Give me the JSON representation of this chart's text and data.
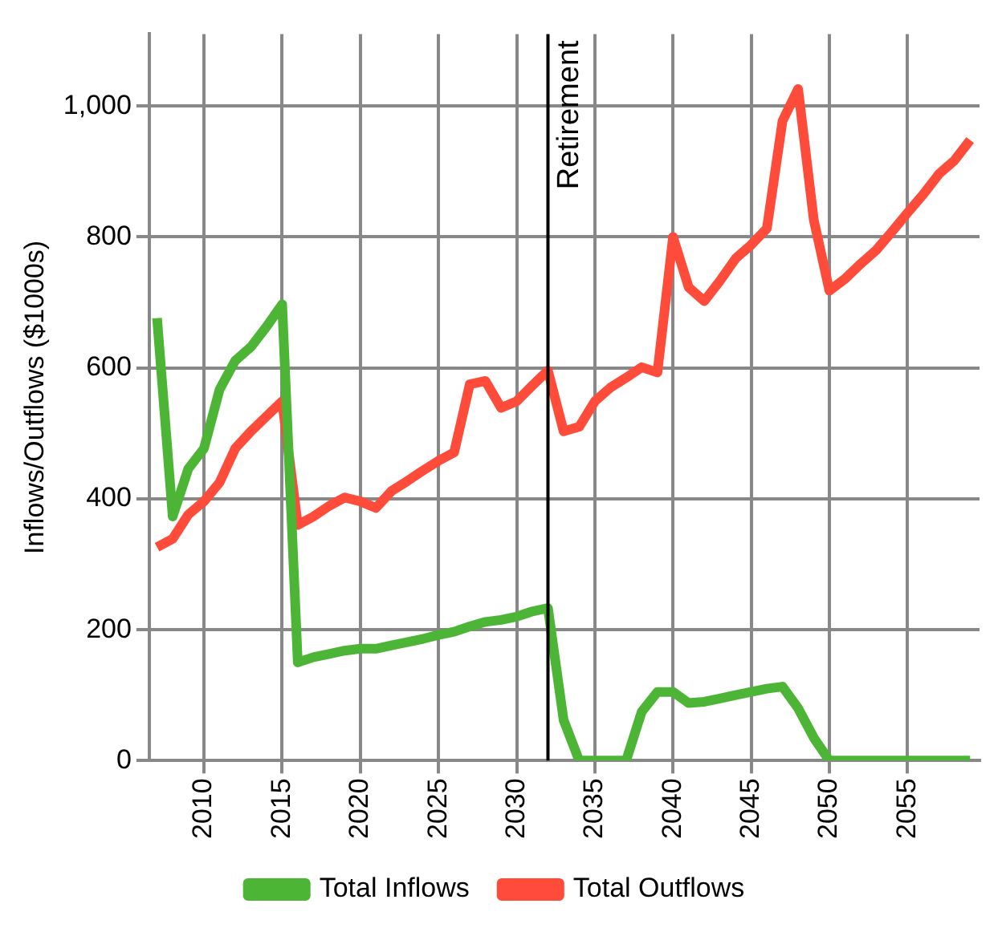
{
  "chart_data": {
    "type": "line",
    "ylabel": "Inflows/Outflows ($1000s)",
    "x": [
      2007,
      2008,
      2009,
      2010,
      2011,
      2012,
      2013,
      2014,
      2015,
      2016,
      2017,
      2018,
      2019,
      2020,
      2021,
      2022,
      2023,
      2024,
      2025,
      2026,
      2027,
      2028,
      2029,
      2030,
      2031,
      2032,
      2033,
      2034,
      2035,
      2036,
      2037,
      2038,
      2039,
      2040,
      2041,
      2042,
      2043,
      2044,
      2045,
      2046,
      2047,
      2048,
      2049,
      2050,
      2051,
      2052,
      2053,
      2054,
      2055,
      2056,
      2057,
      2058,
      2059
    ],
    "series": [
      {
        "name": "Total Inflows",
        "color": "#4cb535",
        "values": [
          676,
          373,
          446,
          477,
          567,
          611,
          632,
          663,
          697,
          150,
          158,
          163,
          168,
          171,
          171,
          176,
          181,
          186,
          192,
          197,
          205,
          212,
          215,
          220,
          228,
          233,
          62,
          0,
          0,
          0,
          0,
          75,
          105,
          105,
          88,
          90,
          95,
          100,
          105,
          110,
          113,
          80,
          35,
          0,
          0,
          0,
          0,
          0,
          0,
          0,
          0,
          0,
          0
        ]
      },
      {
        "name": "Total Outflows",
        "color": "#ff4b3a",
        "values": [
          326,
          339,
          376,
          396,
          425,
          477,
          503,
          526,
          549,
          360,
          373,
          389,
          402,
          396,
          386,
          412,
          427,
          443,
          458,
          471,
          575,
          580,
          539,
          549,
          573,
          596,
          503,
          510,
          549,
          570,
          585,
          601,
          593,
          800,
          723,
          702,
          733,
          767,
          788,
          813,
          977,
          1026,
          826,
          718,
          736,
          759,
          780,
          808,
          837,
          865,
          896,
          917,
          948
        ]
      }
    ],
    "xlim": [
      2006.5,
      2059.6
    ],
    "xticks": [
      2010,
      2015,
      2020,
      2025,
      2030,
      2035,
      2040,
      2045,
      2050,
      2055
    ],
    "ylim": [
      0,
      1110
    ],
    "yticks": [
      0,
      200,
      400,
      600,
      800,
      {
        "value": 1000,
        "label": "1,000"
      }
    ],
    "ref_lines": [
      {
        "axis": "x",
        "value": 2032,
        "label": "Retirement",
        "color": "#000000"
      }
    ],
    "grid": true,
    "legend": "bottom",
    "marker": "none",
    "line_style": "solid"
  }
}
